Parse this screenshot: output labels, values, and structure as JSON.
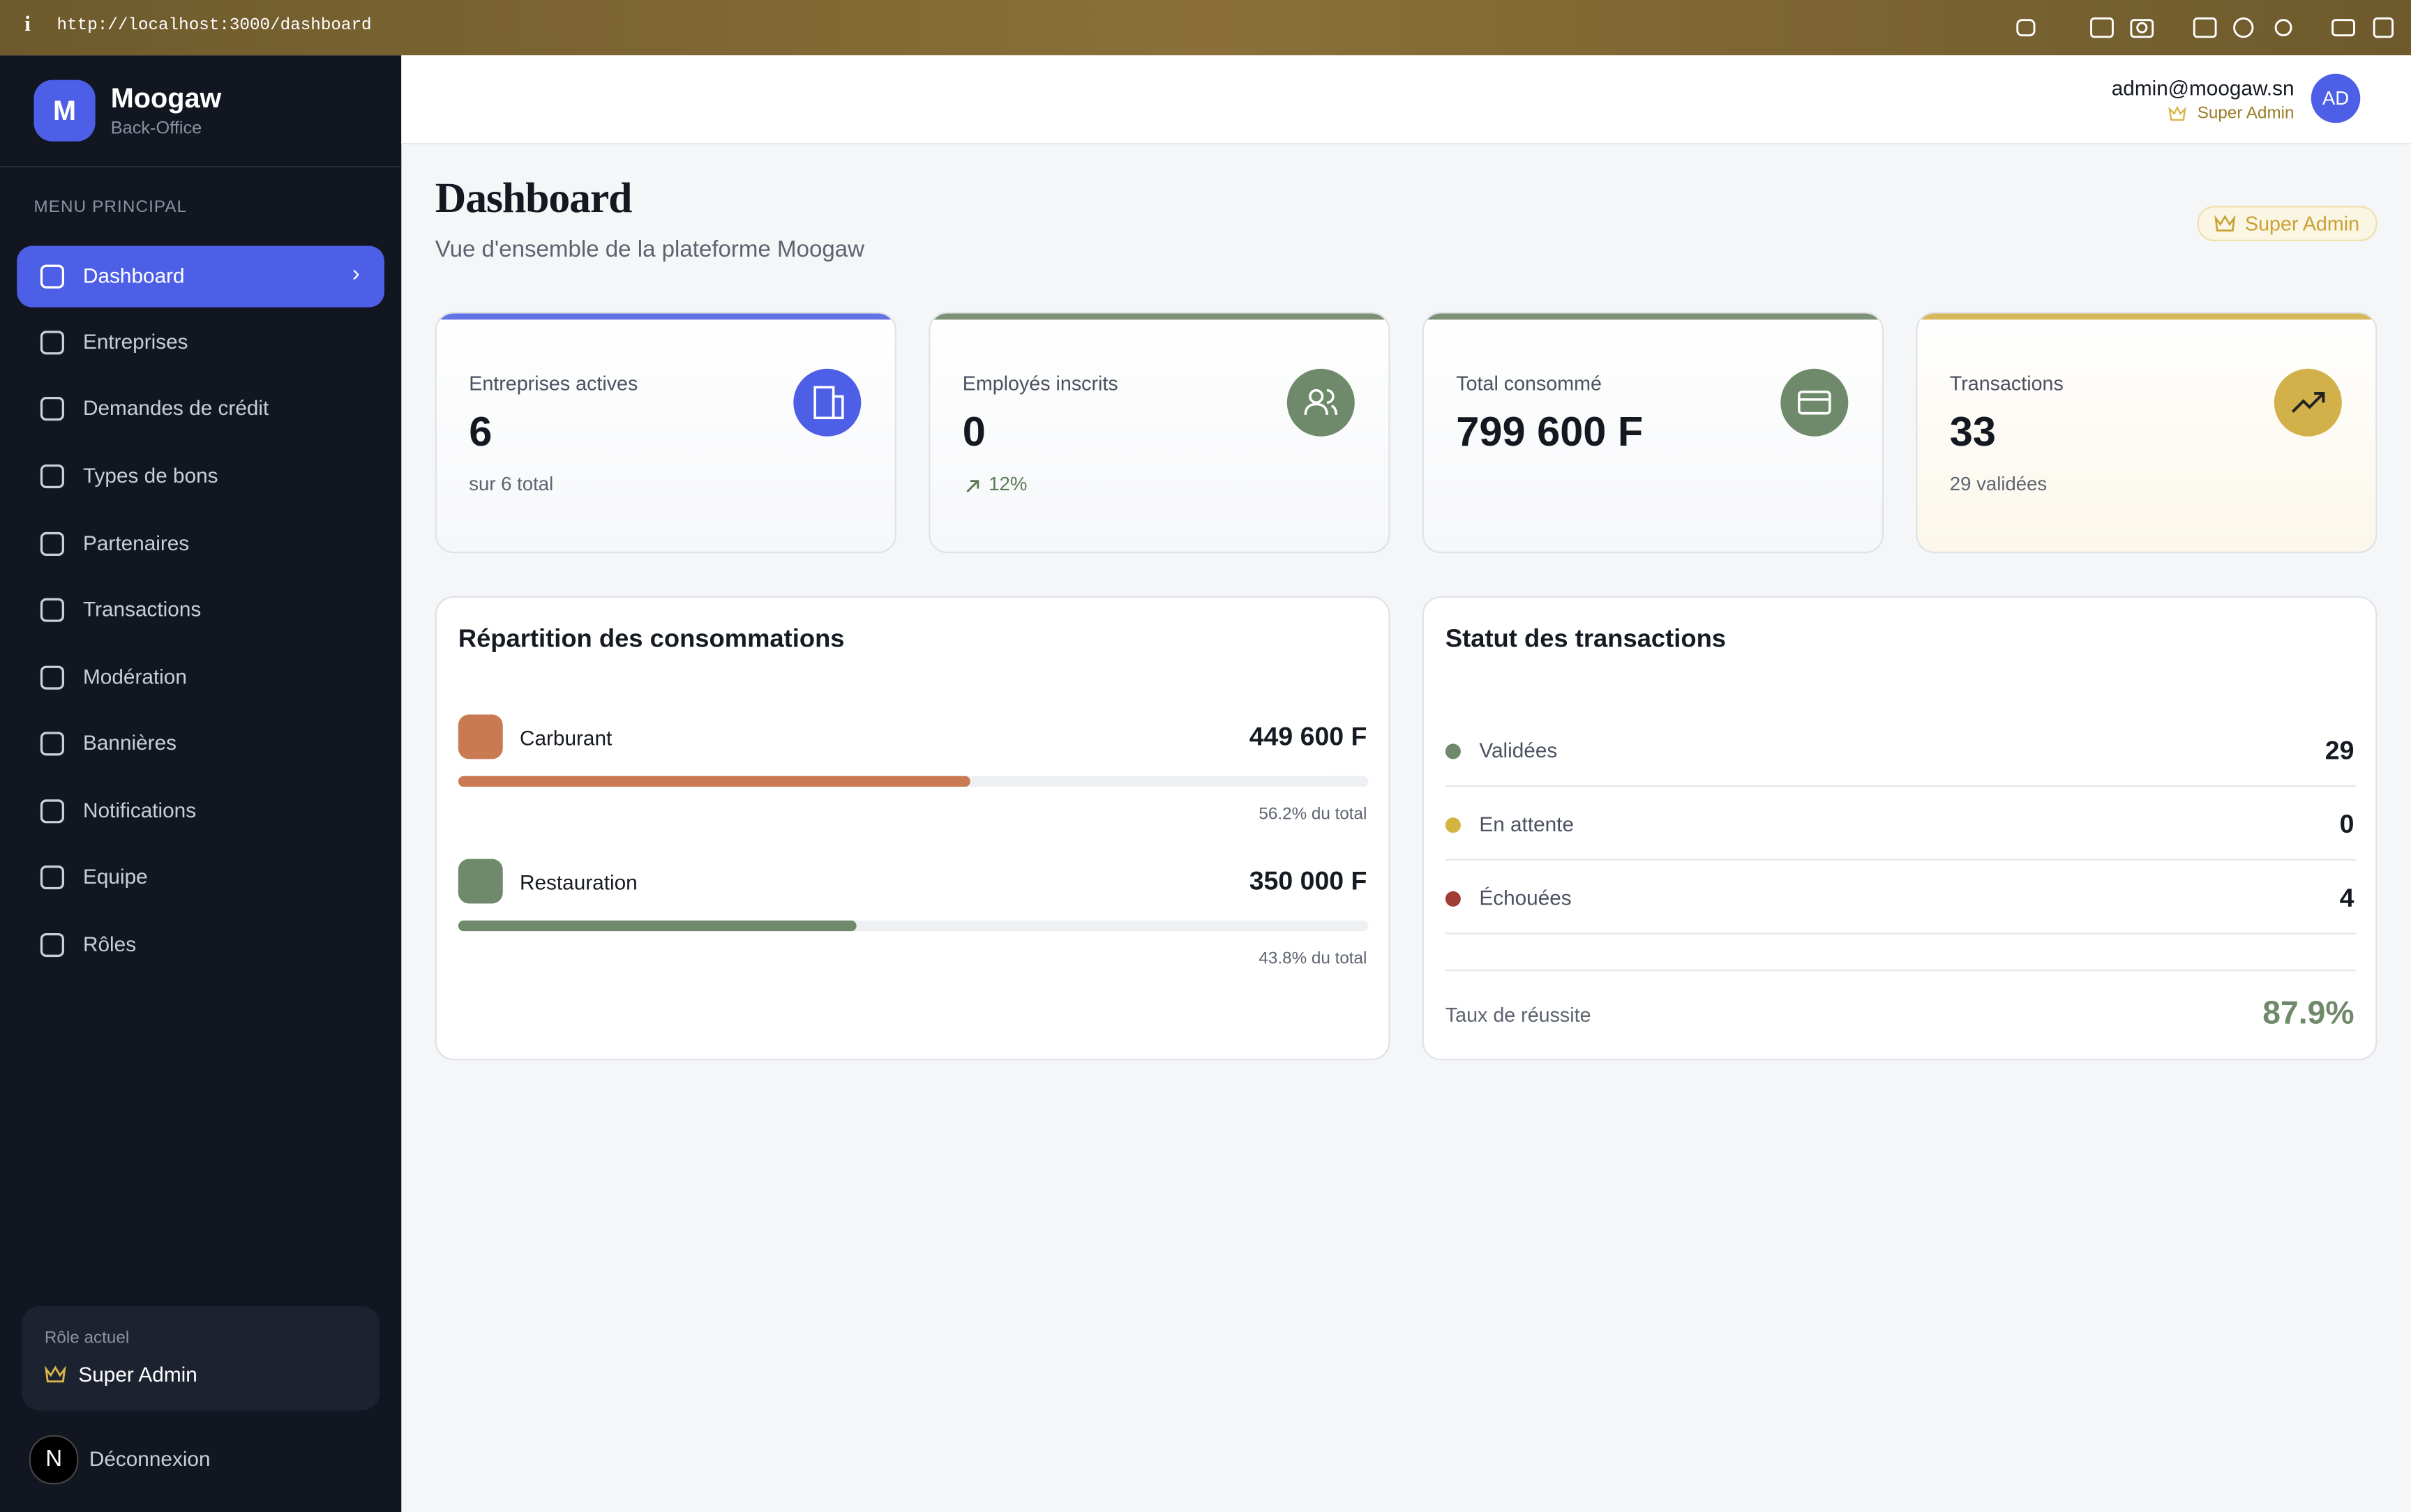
{
  "browser": {
    "url": "http://localhost:3000/dashboard"
  },
  "sidebar": {
    "logo_letter": "M",
    "brand": "Moogaw",
    "brand_subtitle": "Back-Office",
    "section_title": "MENU PRINCIPAL",
    "nav": [
      "Dashboard",
      "Entreprises",
      "Demandes de crédit",
      "Types de bons",
      "Partenaires",
      "Transactions",
      "Modération",
      "Bannières",
      "Notifications",
      "Equipe",
      "Rôles"
    ],
    "role_label": "Rôle actuel",
    "role": "Super Admin",
    "logout_avatar": "N",
    "logout": "Déconnexion"
  },
  "header": {
    "email": "admin@moogaw.sn",
    "role": "Super Admin",
    "avatar": "AD"
  },
  "page": {
    "title": "Dashboard",
    "subtitle": "Vue d'ensemble de la plateforme Moogaw",
    "badge": "Super Admin"
  },
  "stats": [
    {
      "label": "Entreprises actives",
      "value": 6,
      "note": "sur 6 total"
    },
    {
      "label": "Employés inscrits",
      "value": 0,
      "note": "12%"
    },
    {
      "label": "Total consommé",
      "value": "799 600 F"
    },
    {
      "label": "Transactions",
      "value": 33,
      "note": "29 validées"
    }
  ],
  "consumption": {
    "title": "Répartition des consommations",
    "items": [
      {
        "name": "Carburant",
        "amount": "449 600 F",
        "percent": 56.2,
        "percent_label": "56.2% du total"
      },
      {
        "name": "Restauration",
        "amount": "350 000 F",
        "percent": 43.8,
        "percent_label": "43.8% du total"
      }
    ]
  },
  "transactions": {
    "title": "Statut des transactions",
    "rows": [
      {
        "label": "Validées",
        "count": 29
      },
      {
        "label": "En attente",
        "count": 0
      },
      {
        "label": "Échouées",
        "count": 4
      }
    ],
    "rate_label": "Taux de réussite",
    "rate": "87.9%"
  }
}
